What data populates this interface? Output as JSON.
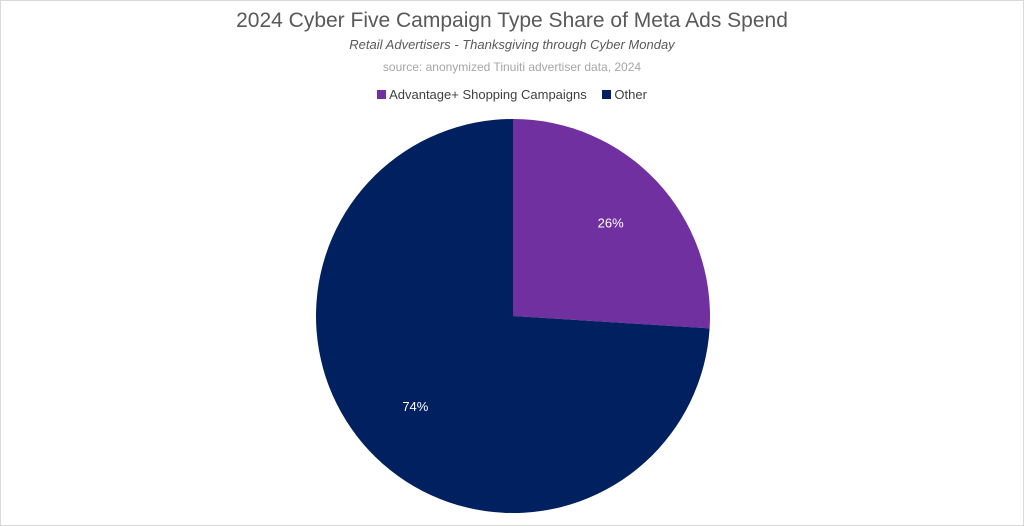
{
  "chart_data": {
    "type": "pie",
    "title": "2024 Cyber Five Campaign Type Share of Meta Ads Spend",
    "subtitle": "Retail Advertisers - Thanksgiving through Cyber Monday",
    "source": "source: anonymized Tinuiti advertiser data, 2024",
    "legend_position": "top",
    "slices": [
      {
        "name": "Advantage+ Shopping Campaigns",
        "value": 26,
        "label": "26%",
        "color": "#7030a0"
      },
      {
        "name": "Other",
        "value": 74,
        "label": "74%",
        "color": "#002060"
      }
    ]
  }
}
